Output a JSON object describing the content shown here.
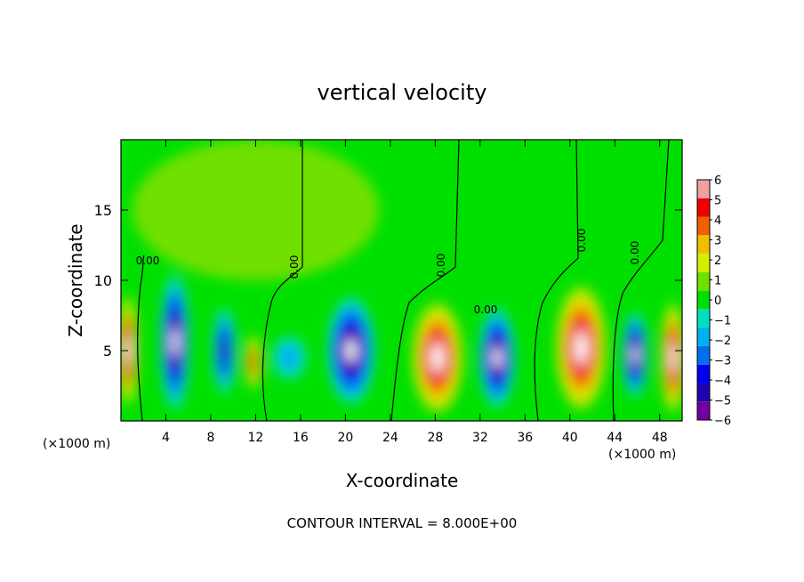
{
  "chart_data": {
    "type": "heatmap",
    "title": "vertical velocity",
    "xlabel": "X-coordinate",
    "ylabel": "Z-coordinate",
    "x_unit_left": "(×1000 m)",
    "x_unit_right": "(×1000 m)",
    "footer": "CONTOUR INTERVAL = 8.000E+00",
    "xlim": [
      0,
      50
    ],
    "ylim": [
      0,
      20
    ],
    "x_ticks": [
      4,
      8,
      12,
      16,
      20,
      24,
      28,
      32,
      36,
      40,
      44,
      48
    ],
    "y_ticks": [
      5,
      10,
      15
    ],
    "colorbar": {
      "min": -6,
      "max": 6,
      "ticks": [
        6,
        5,
        4,
        3,
        2,
        1,
        0,
        -1,
        -2,
        -3,
        -4,
        -5,
        -6
      ],
      "tick_labels": [
        "6",
        "5",
        "4",
        "3",
        "2",
        "1",
        "0",
        "−1",
        "−2",
        "−3",
        "−4",
        "−5",
        "−6"
      ],
      "colors": [
        "#7000a0",
        "#2000b0",
        "#0000f0",
        "#0070f0",
        "#00b0f0",
        "#00e0c0",
        "#00e000",
        "#70e000",
        "#d0f000",
        "#f0c000",
        "#f06000",
        "#f00000",
        "#f0a0a0"
      ]
    },
    "contour_labels": [
      "0.00",
      "0.00",
      "0.00",
      "0.00",
      "0.00",
      "0.00"
    ],
    "cells": [
      {
        "x": 0.6,
        "z": 5.0,
        "w": 1.8,
        "h": 8.0,
        "v": 9
      },
      {
        "x": 4.8,
        "z": 5.6,
        "w": 2.6,
        "h": 9.5,
        "v": -9
      },
      {
        "x": 9.2,
        "z": 5.0,
        "w": 2.0,
        "h": 6.0,
        "v": -5
      },
      {
        "x": 11.8,
        "z": 4.2,
        "w": 1.4,
        "h": 4.0,
        "v": 5
      },
      {
        "x": 15.0,
        "z": 4.5,
        "w": 3.0,
        "h": 3.0,
        "v": -2
      },
      {
        "x": 20.5,
        "z": 5.0,
        "w": 4.2,
        "h": 7.5,
        "v": -9
      },
      {
        "x": 28.2,
        "z": 4.5,
        "w": 4.6,
        "h": 8.0,
        "v": 9
      },
      {
        "x": 33.5,
        "z": 4.5,
        "w": 3.2,
        "h": 7.0,
        "v": -8
      },
      {
        "x": 41.0,
        "z": 5.2,
        "w": 4.6,
        "h": 9.0,
        "v": 9
      },
      {
        "x": 45.8,
        "z": 4.7,
        "w": 2.2,
        "h": 6.0,
        "v": -7
      },
      {
        "x": 49.2,
        "z": 4.5,
        "w": 2.2,
        "h": 8.0,
        "v": 9
      },
      {
        "x": 12.0,
        "z": 15.0,
        "w": 22.0,
        "h": 10.0,
        "v": 0.6
      }
    ]
  }
}
